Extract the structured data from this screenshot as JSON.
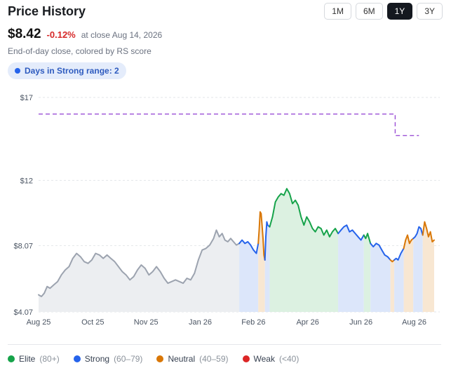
{
  "header": {
    "title": "Price History",
    "ranges": [
      "1M",
      "6M",
      "1Y",
      "3Y"
    ],
    "active_range": "1Y"
  },
  "quote": {
    "price": "$8.42",
    "change": "-0.12%",
    "as_of": "at close Aug 14, 2026",
    "subtitle": "End-of-day close, colored by RS score"
  },
  "badge": {
    "label": "Days in Strong range: 2"
  },
  "colors": {
    "elite": "#16a34a",
    "strong": "#2563eb",
    "neutral": "#d97706",
    "weak": "#dc2626",
    "unscored": "#9ca3af",
    "reference_line": "#9b4fd6"
  },
  "legend": [
    {
      "key": "elite",
      "name": "Elite",
      "range": "(80+)"
    },
    {
      "key": "strong",
      "name": "Strong",
      "range": "(60–79)"
    },
    {
      "key": "neutral",
      "name": "Neutral",
      "range": "(40–59)"
    },
    {
      "key": "weak",
      "name": "Weak",
      "range": "(<40)"
    }
  ],
  "chart_data": {
    "type": "line",
    "y_ticks": [
      {
        "value": 4.07,
        "label": "$4.07"
      },
      {
        "value": 8.07,
        "label": "$8.07"
      },
      {
        "value": 12,
        "label": "$12"
      },
      {
        "value": 17,
        "label": "$17"
      }
    ],
    "ylim": [
      4.07,
      17
    ],
    "x_ticks": [
      {
        "week": 0,
        "label": "Aug 25"
      },
      {
        "week": 5.7,
        "label": "Oct 25"
      },
      {
        "week": 11.3,
        "label": "Nov 25"
      },
      {
        "week": 17.0,
        "label": "Jan 26"
      },
      {
        "week": 22.6,
        "label": "Feb 26"
      },
      {
        "week": 28.3,
        "label": "Apr 26"
      },
      {
        "week": 33.9,
        "label": "Jun 26"
      },
      {
        "week": 39.5,
        "label": "Aug 26"
      }
    ],
    "xlim": [
      0,
      40
    ],
    "grid": true,
    "reference_line": {
      "segments": [
        {
          "from": 0,
          "to": 37.5,
          "value": 16.0
        },
        {
          "from": 37.5,
          "to": 40,
          "value": 14.7
        }
      ]
    },
    "segments": [
      {
        "rating": "unscored",
        "points": [
          [
            0,
            5.1
          ],
          [
            0.3,
            5.0
          ],
          [
            0.6,
            5.2
          ],
          [
            0.9,
            5.6
          ],
          [
            1.2,
            5.5
          ],
          [
            1.6,
            5.7
          ],
          [
            2.0,
            5.9
          ],
          [
            2.4,
            6.3
          ],
          [
            2.8,
            6.6
          ],
          [
            3.2,
            6.8
          ],
          [
            3.6,
            7.3
          ],
          [
            4.0,
            7.6
          ],
          [
            4.4,
            7.4
          ],
          [
            4.8,
            7.1
          ],
          [
            5.2,
            7.0
          ],
          [
            5.6,
            7.2
          ],
          [
            6.0,
            7.6
          ],
          [
            6.4,
            7.5
          ],
          [
            6.8,
            7.3
          ],
          [
            7.2,
            7.5
          ],
          [
            7.6,
            7.3
          ],
          [
            8.0,
            7.1
          ],
          [
            8.4,
            6.8
          ],
          [
            8.8,
            6.5
          ],
          [
            9.2,
            6.3
          ],
          [
            9.6,
            6.0
          ],
          [
            10.0,
            6.2
          ],
          [
            10.4,
            6.6
          ],
          [
            10.8,
            6.9
          ],
          [
            11.2,
            6.7
          ],
          [
            11.6,
            6.3
          ],
          [
            12.0,
            6.5
          ],
          [
            12.4,
            6.8
          ],
          [
            12.8,
            6.5
          ],
          [
            13.2,
            6.1
          ],
          [
            13.6,
            5.8
          ],
          [
            14.0,
            5.9
          ],
          [
            14.4,
            6.0
          ],
          [
            14.8,
            5.9
          ],
          [
            15.2,
            5.8
          ],
          [
            15.6,
            6.1
          ],
          [
            16.0,
            6.0
          ],
          [
            16.4,
            6.4
          ],
          [
            16.8,
            7.2
          ],
          [
            17.2,
            7.8
          ],
          [
            17.6,
            7.9
          ],
          [
            18.0,
            8.1
          ],
          [
            18.4,
            8.5
          ],
          [
            18.7,
            9.0
          ],
          [
            19.0,
            8.6
          ],
          [
            19.3,
            8.8
          ],
          [
            19.6,
            8.4
          ],
          [
            19.9,
            8.3
          ],
          [
            20.2,
            8.5
          ],
          [
            20.5,
            8.3
          ],
          [
            20.8,
            8.1
          ],
          [
            21.1,
            8.2
          ]
        ]
      },
      {
        "rating": "strong",
        "points": [
          [
            21.1,
            8.2
          ],
          [
            21.4,
            8.4
          ],
          [
            21.7,
            8.2
          ],
          [
            22.0,
            8.3
          ],
          [
            22.3,
            8.1
          ],
          [
            22.6,
            7.8
          ],
          [
            22.9,
            7.6
          ],
          [
            23.1,
            8.2
          ]
        ]
      },
      {
        "rating": "neutral",
        "points": [
          [
            23.1,
            8.2
          ],
          [
            23.2,
            9.0
          ],
          [
            23.3,
            10.1
          ],
          [
            23.4,
            10.0
          ],
          [
            23.5,
            9.3
          ],
          [
            23.6,
            8.5
          ],
          [
            23.7,
            7.5
          ],
          [
            23.8,
            7.2
          ]
        ]
      },
      {
        "rating": "strong",
        "points": [
          [
            23.8,
            7.2
          ],
          [
            23.9,
            8.6
          ],
          [
            24.0,
            9.5
          ],
          [
            24.1,
            9.3
          ],
          [
            24.3,
            9.2
          ]
        ]
      },
      {
        "rating": "elite",
        "points": [
          [
            24.3,
            9.2
          ],
          [
            24.6,
            9.8
          ],
          [
            24.9,
            10.7
          ],
          [
            25.2,
            11.0
          ],
          [
            25.5,
            11.2
          ],
          [
            25.8,
            11.1
          ],
          [
            26.1,
            11.5
          ],
          [
            26.4,
            11.2
          ],
          [
            26.7,
            10.6
          ],
          [
            27.0,
            10.8
          ],
          [
            27.3,
            10.5
          ],
          [
            27.6,
            9.8
          ],
          [
            27.9,
            9.3
          ],
          [
            28.2,
            9.8
          ],
          [
            28.5,
            9.5
          ],
          [
            28.8,
            9.1
          ],
          [
            29.1,
            8.9
          ],
          [
            29.4,
            9.2
          ],
          [
            29.7,
            9.1
          ],
          [
            30.0,
            8.7
          ],
          [
            30.3,
            9.0
          ],
          [
            30.6,
            8.6
          ],
          [
            30.9,
            8.9
          ],
          [
            31.2,
            9.1
          ],
          [
            31.5,
            8.8
          ]
        ]
      },
      {
        "rating": "strong",
        "points": [
          [
            31.5,
            8.8
          ],
          [
            31.8,
            9.0
          ],
          [
            32.1,
            9.2
          ],
          [
            32.4,
            9.3
          ],
          [
            32.7,
            8.9
          ],
          [
            33.0,
            9.0
          ],
          [
            33.3,
            8.8
          ],
          [
            33.6,
            8.6
          ],
          [
            33.9,
            8.4
          ],
          [
            34.2,
            8.7
          ]
        ]
      },
      {
        "rating": "elite",
        "points": [
          [
            34.2,
            8.7
          ],
          [
            34.4,
            8.5
          ],
          [
            34.6,
            8.8
          ],
          [
            34.8,
            8.4
          ],
          [
            34.9,
            8.2
          ]
        ]
      },
      {
        "rating": "strong",
        "points": [
          [
            34.9,
            8.2
          ],
          [
            35.2,
            8.0
          ],
          [
            35.5,
            8.2
          ],
          [
            35.8,
            8.1
          ],
          [
            36.1,
            7.8
          ],
          [
            36.4,
            7.5
          ],
          [
            36.7,
            7.4
          ],
          [
            37.0,
            7.2
          ]
        ]
      },
      {
        "rating": "neutral",
        "points": [
          [
            37.0,
            7.2
          ],
          [
            37.2,
            7.1
          ],
          [
            37.4,
            7.2
          ]
        ]
      },
      {
        "rating": "strong",
        "points": [
          [
            37.4,
            7.2
          ],
          [
            37.6,
            7.3
          ],
          [
            37.8,
            7.2
          ],
          [
            38.1,
            7.6
          ],
          [
            38.4,
            7.9
          ]
        ]
      },
      {
        "rating": "neutral",
        "points": [
          [
            38.4,
            7.9
          ],
          [
            38.6,
            8.4
          ],
          [
            38.8,
            8.7
          ],
          [
            39.0,
            8.2
          ],
          [
            39.2,
            8.4
          ],
          [
            39.4,
            8.5
          ]
        ]
      },
      {
        "rating": "strong",
        "points": [
          [
            39.4,
            8.5
          ],
          [
            39.6,
            8.6
          ],
          [
            39.8,
            8.8
          ],
          [
            40.0,
            9.2
          ],
          [
            40.2,
            9.1
          ],
          [
            40.4,
            8.7
          ]
        ]
      },
      {
        "rating": "neutral",
        "points": [
          [
            40.4,
            8.7
          ],
          [
            40.6,
            9.5
          ],
          [
            40.8,
            9.1
          ],
          [
            41.0,
            8.6
          ],
          [
            41.2,
            8.9
          ],
          [
            41.4,
            8.3
          ],
          [
            41.6,
            8.4
          ]
        ]
      }
    ],
    "bands": [
      {
        "rating": "strong",
        "from": 21.1,
        "to": 23.1
      },
      {
        "rating": "neutral",
        "from": 23.1,
        "to": 23.8
      },
      {
        "rating": "strong",
        "from": 23.8,
        "to": 24.3
      },
      {
        "rating": "elite",
        "from": 24.3,
        "to": 31.5
      },
      {
        "rating": "strong",
        "from": 31.5,
        "to": 34.2
      },
      {
        "rating": "elite",
        "from": 34.2,
        "to": 34.9
      },
      {
        "rating": "strong",
        "from": 34.9,
        "to": 37.0
      },
      {
        "rating": "neutral",
        "from": 37.0,
        "to": 37.4
      },
      {
        "rating": "strong",
        "from": 37.4,
        "to": 38.4
      },
      {
        "rating": "neutral",
        "from": 38.4,
        "to": 39.4
      },
      {
        "rating": "strong",
        "from": 39.4,
        "to": 40.4
      },
      {
        "rating": "neutral",
        "from": 40.4,
        "to": 41.6
      }
    ]
  }
}
